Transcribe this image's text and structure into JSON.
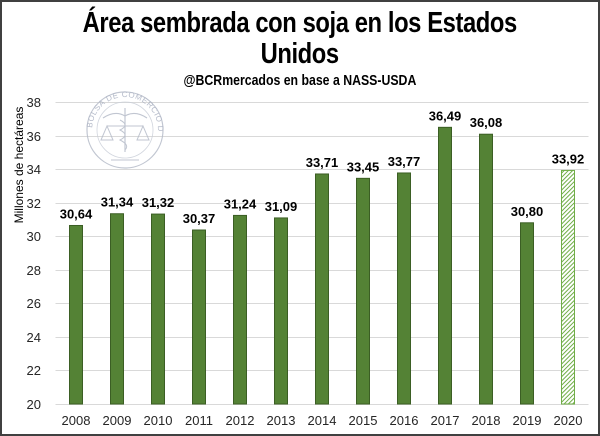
{
  "chart_data": {
    "type": "bar",
    "title_line1": "Área sembrada con soja en los Estados",
    "title_line2": "Unidos",
    "subtitle": "@BCRmercados en base a NASS-USDA",
    "xlabel": "",
    "ylabel": "Millones de hectáreas",
    "ylim": [
      20,
      38
    ],
    "yticks": [
      20,
      22,
      24,
      26,
      28,
      30,
      32,
      34,
      36,
      38
    ],
    "grid": true,
    "categories": [
      "2008",
      "2009",
      "2010",
      "2011",
      "2012",
      "2013",
      "2014",
      "2015",
      "2016",
      "2017",
      "2018",
      "2019",
      "2020"
    ],
    "values": [
      30.64,
      31.34,
      31.32,
      30.37,
      31.24,
      31.09,
      33.71,
      33.45,
      33.77,
      36.49,
      36.08,
      30.8,
      33.92
    ],
    "data_labels": [
      "30,64",
      "31,34",
      "31,32",
      "30,37",
      "31,24",
      "31,09",
      "33,71",
      "33,45",
      "33,77",
      "36,49",
      "36,08",
      "30,80",
      "33,92"
    ],
    "projected": [
      false,
      false,
      false,
      false,
      false,
      false,
      false,
      false,
      false,
      false,
      false,
      false,
      true
    ],
    "colors": {
      "bar": "#548235",
      "bar_border": "#3b5e24",
      "projected_hatch": "#70ad47",
      "grid": "#d9d9d9"
    },
    "watermark": "BOLSA DE COMERCIO DE ROSARIO"
  }
}
